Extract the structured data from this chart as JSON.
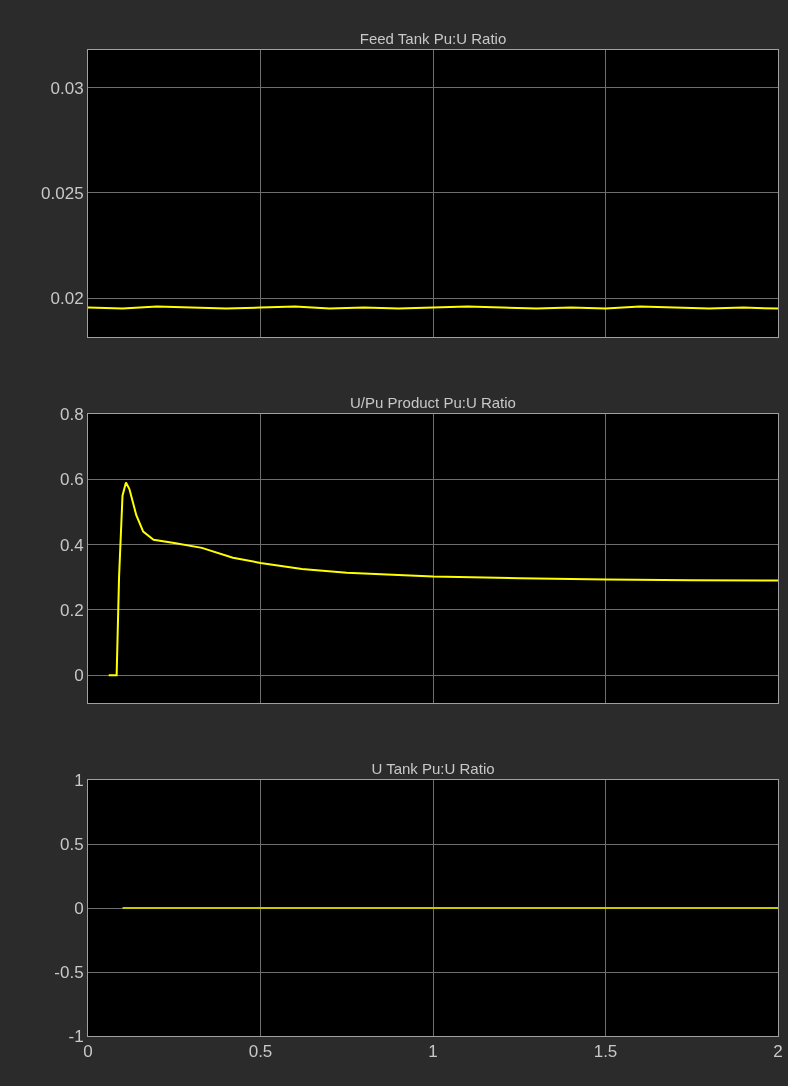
{
  "chart_data": [
    {
      "type": "line",
      "title": "Feed Tank Pu:U Ratio",
      "x": [
        0,
        0.1,
        0.2,
        0.3,
        0.4,
        0.5,
        0.6,
        0.7,
        0.8,
        0.9,
        1,
        1.1,
        1.2,
        1.3,
        1.4,
        1.5,
        1.6,
        1.7,
        1.8,
        1.9,
        2
      ],
      "series": [
        {
          "color": "#ffff00",
          "values": [
            0.01955,
            0.0195,
            0.0196,
            0.01955,
            0.0195,
            0.01955,
            0.0196,
            0.0195,
            0.01955,
            0.0195,
            0.01955,
            0.0196,
            0.01955,
            0.0195,
            0.01955,
            0.0195,
            0.0196,
            0.01955,
            0.0195,
            0.01955,
            0.0195
          ]
        }
      ],
      "xlim": [
        0,
        2
      ],
      "xticks": [
        0,
        0.5,
        1,
        1.5,
        2
      ],
      "ylim": [
        0.01815,
        0.0318
      ],
      "yticks": [
        0.02,
        0.025,
        0.03
      ],
      "grid": true,
      "tick_labels": "y"
    },
    {
      "type": "line",
      "title": "U/Pu Product Pu:U Ratio",
      "x": [
        0.06,
        0.083,
        0.09,
        0.1,
        0.11,
        0.12,
        0.14,
        0.16,
        0.19,
        0.25,
        0.33,
        0.42,
        0.5,
        0.62,
        0.75,
        1,
        1.25,
        1.5,
        1.75,
        2
      ],
      "series": [
        {
          "color": "#ffff00",
          "values": [
            0,
            0,
            0.3,
            0.55,
            0.59,
            0.57,
            0.49,
            0.44,
            0.415,
            0.405,
            0.39,
            0.36,
            0.344,
            0.325,
            0.314,
            0.302,
            0.297,
            0.293,
            0.291,
            0.29
          ]
        }
      ],
      "xlim": [
        0,
        2
      ],
      "xticks": [
        0,
        0.5,
        1,
        1.5,
        2
      ],
      "ylim": [
        -0.085,
        0.8
      ],
      "yticks": [
        0,
        0.2,
        0.4,
        0.6,
        0.8
      ],
      "grid": true,
      "tick_labels": "y"
    },
    {
      "type": "line",
      "title": "U Tank Pu:U Ratio",
      "x": [
        0.1,
        2
      ],
      "series": [
        {
          "color": "#c8c800",
          "values": [
            0,
            0
          ]
        }
      ],
      "xlim": [
        0,
        2
      ],
      "xticks": [
        0,
        0.5,
        1,
        1.5,
        2
      ],
      "ylim": [
        -1,
        1
      ],
      "yticks": [
        -1,
        -0.5,
        0,
        0.5,
        1
      ],
      "grid": true
    }
  ]
}
